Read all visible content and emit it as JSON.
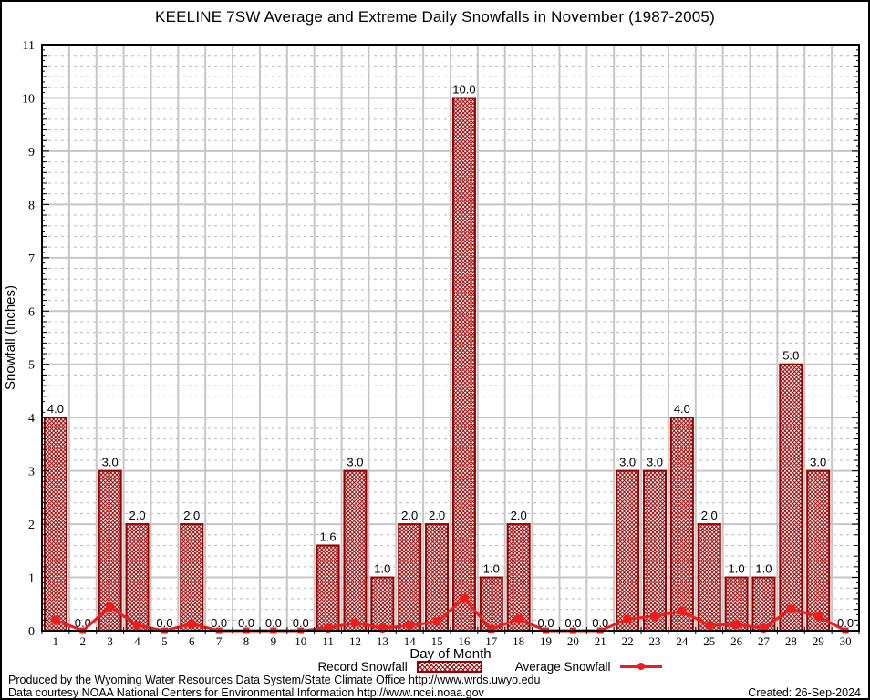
{
  "title": "KEELINE 7SW Average and Extreme Daily Snowfalls in November (1987-2005)",
  "chart_data": {
    "type": "bar",
    "title": "KEELINE 7SW Average and Extreme Daily Snowfalls in November (1987-2005)",
    "xlabel": "Day of Month",
    "ylabel": "Snowfall (Inches)",
    "ylim": [
      0,
      11
    ],
    "ytick_step": 1,
    "yminor_grid_step": 0.2,
    "grid": true,
    "legend_position": "bottom",
    "categories": [
      1,
      2,
      3,
      4,
      5,
      6,
      7,
      8,
      9,
      10,
      11,
      12,
      13,
      14,
      15,
      16,
      17,
      18,
      19,
      20,
      21,
      22,
      23,
      24,
      25,
      26,
      27,
      28,
      29,
      30
    ],
    "series": [
      {
        "name": "Record Snowfall",
        "type": "bar",
        "color": "#990000",
        "values": [
          4,
          0,
          3,
          2,
          0,
          2,
          0,
          0,
          0,
          0,
          1.6,
          3,
          1,
          2,
          2,
          10,
          1,
          2,
          0,
          0,
          0,
          3,
          3,
          4,
          2,
          1,
          1,
          5,
          3,
          0
        ],
        "labels": [
          "4.0",
          "0.0",
          "3.0",
          "2.0",
          "0.0",
          "2.0",
          "0.0",
          "0.0",
          "0.0",
          "0.0",
          "1.6",
          "3.0",
          "1.0",
          "2.0",
          "2.0",
          "10.0",
          "1.0",
          "2.0",
          "0.0",
          "0.0",
          "0.0",
          "3.0",
          "3.0",
          "4.0",
          "2.0",
          "1.0",
          "1.0",
          "5.0",
          "3.0",
          "0.0"
        ]
      },
      {
        "name": "Average Snowfall",
        "type": "line",
        "color": "#ee1c1c",
        "values": [
          0.2,
          0,
          0.45,
          0.1,
          0,
          0.13,
          0,
          0,
          0,
          0,
          0.05,
          0.15,
          0.05,
          0.1,
          0.17,
          0.6,
          0.03,
          0.22,
          0,
          0,
          0,
          0.22,
          0.27,
          0.37,
          0.1,
          0.12,
          0.05,
          0.41,
          0.27,
          0
        ]
      }
    ]
  },
  "legend": {
    "record_label": "Record Snowfall",
    "average_label": "Average Snowfall"
  },
  "footer": {
    "produced": "Produced by the Wyoming Water Resources Data System/State Climate Office http://www.wrds.uwyo.edu",
    "courtesy": "Data courtesy NOAA National Centers for Environmental Information http://www.ncei.noaa.gov",
    "created": "Created: 26-Sep-2024"
  },
  "colors": {
    "bar_red": "#990000",
    "line_red": "#ee1c1c",
    "grid_major": "#c6c6c6",
    "grid_minor": "#b8b8b8"
  }
}
